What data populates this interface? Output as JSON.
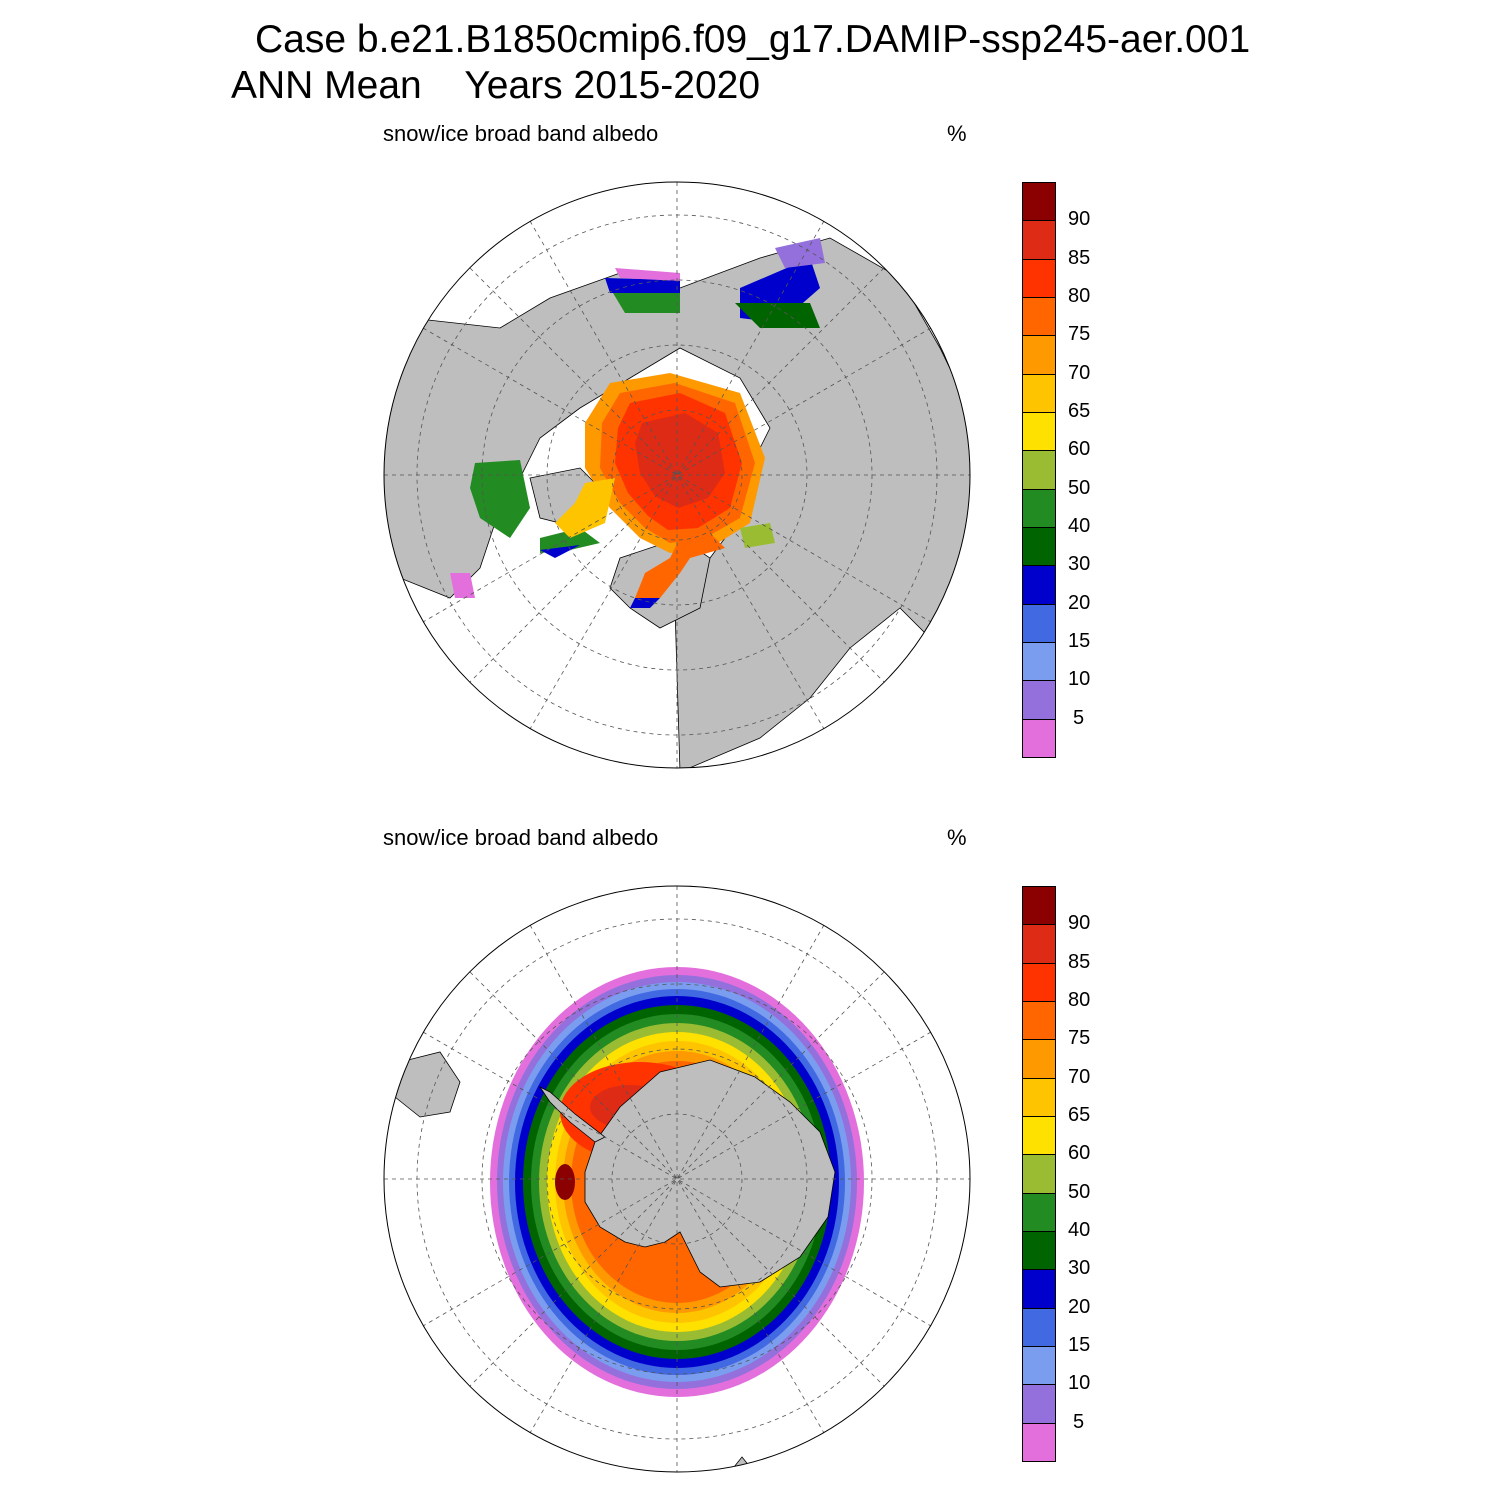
{
  "title": {
    "case_line": "Case b.e21.B1850cmip6.f09_g17.DAMIP-ssp245-aer.001",
    "season": "ANN Mean",
    "years": "Years 2015-2020"
  },
  "panels": [
    {
      "hemisphere": "north",
      "subtitle": "snow/ice broad band albedo",
      "units": "%"
    },
    {
      "hemisphere": "south",
      "subtitle": "snow/ice broad band albedo",
      "units": "%"
    }
  ],
  "colorbar": {
    "levels": [
      "5",
      "10",
      "15",
      "20",
      "30",
      "40",
      "50",
      "60",
      "65",
      "70",
      "75",
      "80",
      "85",
      "90"
    ],
    "colors": [
      "#e36fdd",
      "#9370db",
      "#7b9df0",
      "#4169e1",
      "#0000cd",
      "#006400",
      "#228b22",
      "#9abc32",
      "#ffe100",
      "#ffc400",
      "#ff9900",
      "#ff6600",
      "#ff3300",
      "#dd2b16",
      "#8b0000"
    ]
  },
  "colors": {
    "land": "#bebebe",
    "ocean": "#ffffff",
    "grid": "#555555"
  }
}
